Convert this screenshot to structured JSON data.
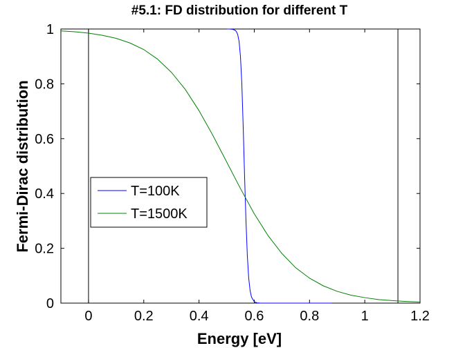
{
  "chart_data": {
    "type": "line",
    "title": "#5.1: FD distribution for different T",
    "xlabel": "Energy [eV]",
    "ylabel": "Fermi-Dirac distribution",
    "xlim": [
      -0.1,
      1.2
    ],
    "ylim": [
      0,
      1
    ],
    "xticks": [
      0,
      0.2,
      0.4,
      0.6,
      0.8,
      1,
      1.2
    ],
    "xtick_labels": [
      "0",
      "0.2",
      "0.4",
      "0.6",
      "0.8",
      "1",
      "1.2"
    ],
    "yticks": [
      0,
      0.2,
      0.4,
      0.6,
      0.8,
      1
    ],
    "ytick_labels": [
      "0",
      "0.2",
      "0.4",
      "0.6",
      "0.8",
      "1"
    ],
    "grid": false,
    "legend_position": "center-left",
    "vertical_lines": [
      0,
      1.12
    ],
    "series": [
      {
        "name": "T=100K",
        "color": "#0000ff",
        "x": [
          0.5,
          0.51,
          0.52,
          0.53,
          0.535,
          0.54,
          0.545,
          0.55,
          0.555,
          0.56,
          0.565,
          0.57,
          0.575,
          0.58,
          0.585,
          0.59,
          0.6,
          0.61,
          0.62,
          0.64,
          0.7,
          0.8,
          0.88
        ],
        "y": [
          1.0,
          0.9999,
          0.9992,
          0.996,
          0.991,
          0.98,
          0.955,
          0.9,
          0.8,
          0.64,
          0.46,
          0.3,
          0.17,
          0.09,
          0.045,
          0.022,
          0.005,
          0.001,
          0.0003,
          0.0,
          0.0,
          0.0,
          0.0
        ]
      },
      {
        "name": "T=1500K",
        "color": "#008000",
        "x": [
          -0.1,
          -0.05,
          0.0,
          0.05,
          0.1,
          0.15,
          0.2,
          0.25,
          0.3,
          0.35,
          0.4,
          0.45,
          0.5,
          0.55,
          0.6,
          0.65,
          0.7,
          0.75,
          0.8,
          0.85,
          0.9,
          0.95,
          1.0,
          1.05,
          1.1,
          1.15,
          1.2
        ],
        "y": [
          0.993,
          0.99,
          0.985,
          0.977,
          0.966,
          0.949,
          0.925,
          0.89,
          0.842,
          0.78,
          0.702,
          0.612,
          0.515,
          0.418,
          0.326,
          0.246,
          0.181,
          0.129,
          0.091,
          0.063,
          0.043,
          0.029,
          0.02,
          0.013,
          0.009,
          0.006,
          0.004
        ]
      }
    ]
  }
}
